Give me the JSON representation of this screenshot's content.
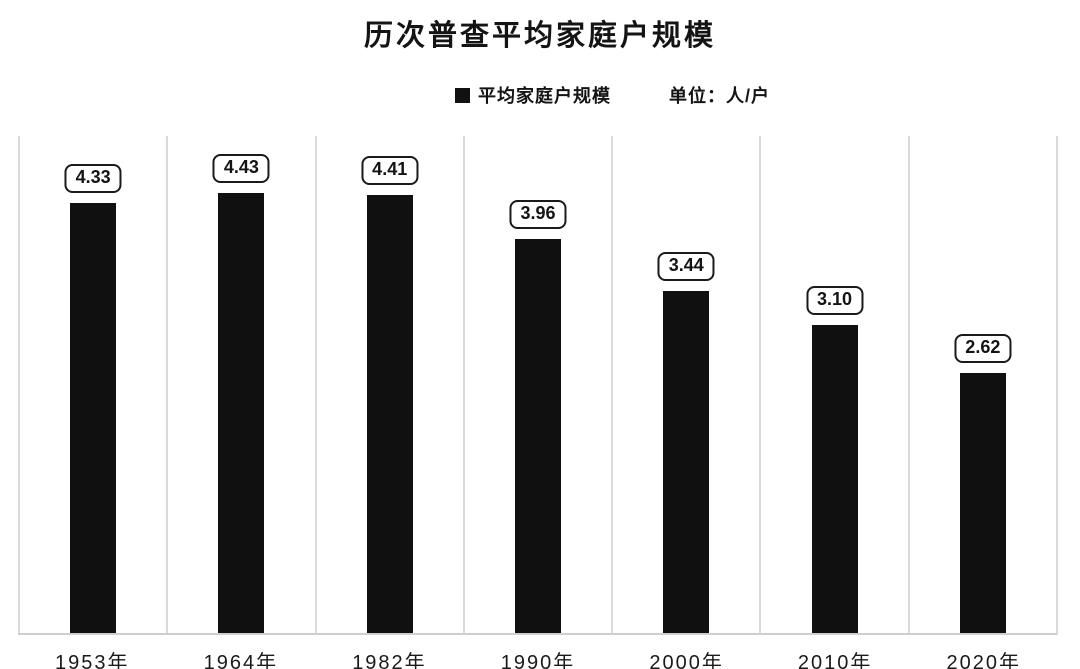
{
  "chart": {
    "title": "历次普查平均家庭户规模",
    "legend": {
      "series_label": "平均家庭户规模",
      "unit_label": "单位：人/户"
    },
    "colors": {
      "bar": "#101010",
      "gridline": "#dadada",
      "axis_line": "#cfcfcf",
      "label_box_border": "#1a1a1a",
      "text": "#141414",
      "background": "#ffffff"
    }
  },
  "chart_data": {
    "type": "bar",
    "title": "历次普查平均家庭户规模",
    "series_name": "平均家庭户规模",
    "unit": "人/户",
    "categories": [
      "1953年",
      "1964年",
      "1982年",
      "1990年",
      "2000年",
      "2010年",
      "2020年"
    ],
    "values": [
      4.33,
      4.43,
      4.41,
      3.96,
      3.44,
      3.1,
      2.62
    ],
    "value_labels": [
      "4.33",
      "4.43",
      "4.41",
      "3.96",
      "3.44",
      "3.10",
      "2.62"
    ],
    "xlabel": "",
    "ylabel": "",
    "ylim": [
      0,
      5
    ],
    "grid": "vertical category separators",
    "legend_position": "top-center",
    "bar_color": "#101010",
    "value_label_style": "rounded white box with black border above each bar"
  }
}
